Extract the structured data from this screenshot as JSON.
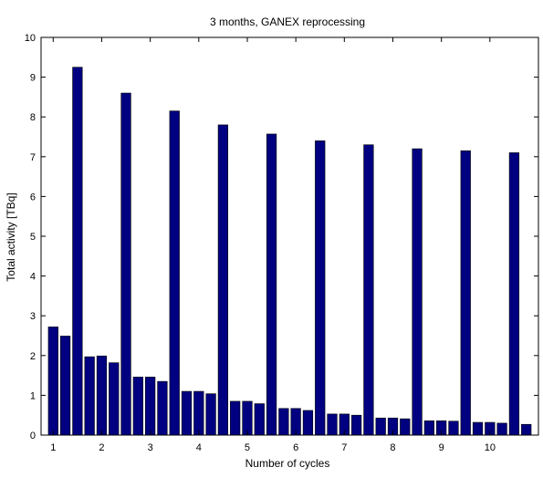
{
  "chart_data": {
    "type": "bar",
    "title": "3 months, GANEX reprocessing",
    "xlabel": "Number of cycles",
    "ylabel": "Total activity [TBq]",
    "xlim": [
      0.75,
      11.0
    ],
    "ylim": [
      0,
      10
    ],
    "xticks": [
      1,
      2,
      3,
      4,
      5,
      6,
      7,
      8,
      9,
      10
    ],
    "yticks": [
      0,
      1,
      2,
      3,
      4,
      5,
      6,
      7,
      8,
      9,
      10
    ],
    "grid": false,
    "legend": "none",
    "bar_color": "#000080",
    "x": [
      1.0,
      1.25,
      1.5,
      1.75,
      2.0,
      2.25,
      2.5,
      2.75,
      3.0,
      3.25,
      3.5,
      3.75,
      4.0,
      4.25,
      4.5,
      4.75,
      5.0,
      5.25,
      5.5,
      5.75,
      6.0,
      6.25,
      6.5,
      6.75,
      7.0,
      7.25,
      7.5,
      7.75,
      8.0,
      8.25,
      8.5,
      8.75,
      9.0,
      9.25,
      9.5,
      9.75,
      10.0,
      10.25,
      10.5,
      10.75
    ],
    "values": [
      2.72,
      2.49,
      9.25,
      1.97,
      1.99,
      1.82,
      8.6,
      1.46,
      1.46,
      1.35,
      8.15,
      1.1,
      1.1,
      1.04,
      7.8,
      0.85,
      0.85,
      0.79,
      7.57,
      0.67,
      0.67,
      0.62,
      7.4,
      0.53,
      0.53,
      0.5,
      7.3,
      0.43,
      0.43,
      0.41,
      7.2,
      0.36,
      0.36,
      0.35,
      7.15,
      0.32,
      0.32,
      0.3,
      7.1,
      0.27
    ]
  }
}
